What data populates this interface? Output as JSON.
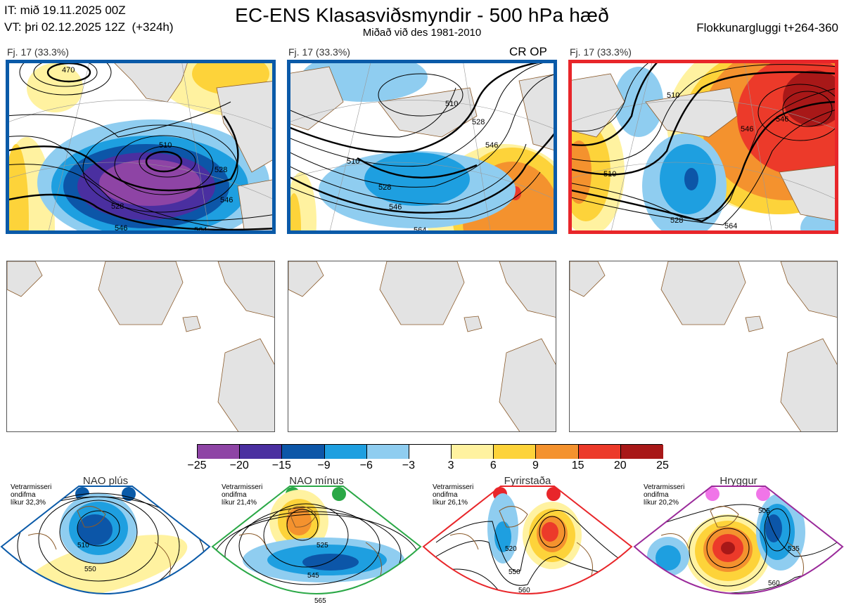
{
  "header": {
    "issue_time": "IT: mið 19.11.2025 00Z",
    "valid_time": "VT: þri 02.12.2025 12Z  (+324h)",
    "title": "EC-ENS Klasasviðsmyndir - 500 hPa hæð",
    "subtitle": "Miðað við des 1981-2010",
    "window": "Flokkunargluggi t+264-360"
  },
  "colors": {
    "nao_plus": "#0a5aa8",
    "nao_minus": "#2aa846",
    "blocking": "#e8262a",
    "ridge": "#f075e8",
    "land": "#e3e3e3",
    "coast": "#8a5a2a"
  },
  "clusters": [
    {
      "label": "Fj. 17 (33.3%)",
      "tag": "",
      "frame_color": "#0a5aa8",
      "contour_labels": [
        "470",
        "510",
        "528",
        "528",
        "546",
        "546",
        "564"
      ]
    },
    {
      "label": "Fj. 17 (33.3%)",
      "tag": "CR OP",
      "frame_color": "#0a5aa8",
      "contour_labels": [
        "510",
        "510",
        "528",
        "528",
        "546",
        "546",
        "564"
      ]
    },
    {
      "label": "Fj. 17 (33.3%)",
      "tag": "",
      "frame_color": "#e8262a",
      "contour_labels": [
        "510",
        "510",
        "528",
        "546",
        "546",
        "564"
      ]
    }
  ],
  "colorbar": {
    "ticks": [
      "−25",
      "−20",
      "−15",
      "−9",
      "−6",
      "−3",
      "3",
      "6",
      "9",
      "15",
      "20",
      "25"
    ],
    "colors": [
      "#8e44a5",
      "#4a2fa0",
      "#0c56a8",
      "#1e9fe0",
      "#8fcdf0",
      "#ffffff",
      "#fff2a0",
      "#fdd33a",
      "#f4922e",
      "#ec3a2a",
      "#a81818"
    ]
  },
  "regimes": [
    {
      "name": "NAO plús",
      "note": [
        "Vetrarmisseri",
        "ondifma",
        "líkur 32,3%"
      ],
      "color": "#0a5aa8",
      "contour_labels": [
        "510",
        "550"
      ]
    },
    {
      "name": "NAO mínus",
      "note": [
        "Vetrarmisseri",
        "ondifma",
        "líkur 21,4%"
      ],
      "color": "#2aa846",
      "contour_labels": [
        "525",
        "545",
        "565"
      ]
    },
    {
      "name": "Fyrirstaða",
      "note": [
        "Vetrarmisseri",
        "ondifma",
        "líkur 26,1%"
      ],
      "color": "#e8262a",
      "contour_labels": [
        "520",
        "550",
        "560"
      ]
    },
    {
      "name": "Hryggur",
      "note": [
        "Vetrarmisseri",
        "ondifma",
        "líkur 20,2%"
      ],
      "color": "#9a2a9a",
      "contour_labels": [
        "505",
        "535",
        "560"
      ]
    }
  ]
}
